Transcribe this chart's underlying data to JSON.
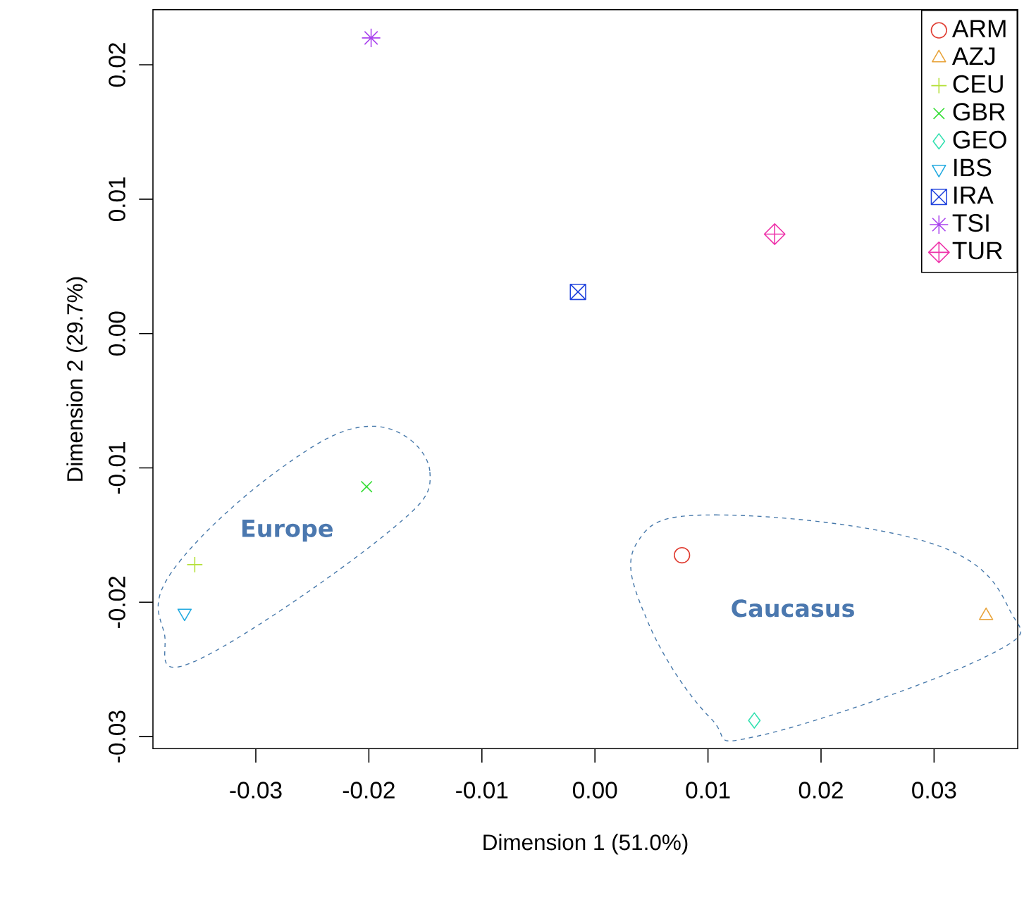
{
  "chart_data": {
    "type": "scatter",
    "xlabel": "Dimension 1 (51.0%)",
    "ylabel": "Dimension 2 (29.7%)",
    "xlim": [
      -0.0391,
      0.0374
    ],
    "ylim": [
      -0.0309,
      0.0241
    ],
    "xticks": [
      -0.03,
      -0.02,
      -0.01,
      {
        "value": 0,
        "label": "0.00"
      },
      0.01,
      0.02,
      0.03
    ],
    "yticks": [
      -0.03,
      -0.02,
      -0.01,
      {
        "value": 0,
        "label": "0.00"
      },
      0.01,
      0.02
    ],
    "grid": false,
    "legend": "top right",
    "series": [
      {
        "name": "ARM",
        "color": "#e03c31",
        "marker": "circle",
        "x": [
          0.0077
        ],
        "values": [
          -0.0165
        ]
      },
      {
        "name": "AZJ",
        "color": "#e8a33a",
        "marker": "triangle",
        "x": [
          0.0346
        ],
        "values": [
          -0.021
        ]
      },
      {
        "name": "CEU",
        "color": "#b5e03a",
        "marker": "plus",
        "x": [
          -0.0354
        ],
        "values": [
          -0.0172
        ]
      },
      {
        "name": "GBR",
        "color": "#33dd33",
        "marker": "x",
        "x": [
          -0.0202
        ],
        "values": [
          -0.0114
        ]
      },
      {
        "name": "GEO",
        "color": "#33e0b0",
        "marker": "diamond",
        "x": [
          0.0141
        ],
        "values": [
          -0.0288
        ]
      },
      {
        "name": "IBS",
        "color": "#22aae0",
        "marker": "triangle-down",
        "x": [
          -0.0363
        ],
        "values": [
          -0.0208
        ]
      },
      {
        "name": "IRA",
        "color": "#2244dd",
        "x": [
          -0.0015
        ],
        "values": [
          0.0031
        ]
      },
      {
        "name": "TSI",
        "color": "#aa44ee",
        "x": [
          -0.0198
        ],
        "values": [
          0.022
        ]
      },
      {
        "name": "TUR",
        "color": "#ee33aa",
        "x": [
          0.0159
        ],
        "values": [
          0.0074
        ]
      }
    ],
    "annotations": [
      "Europe",
      "Caucasus"
    ]
  }
}
